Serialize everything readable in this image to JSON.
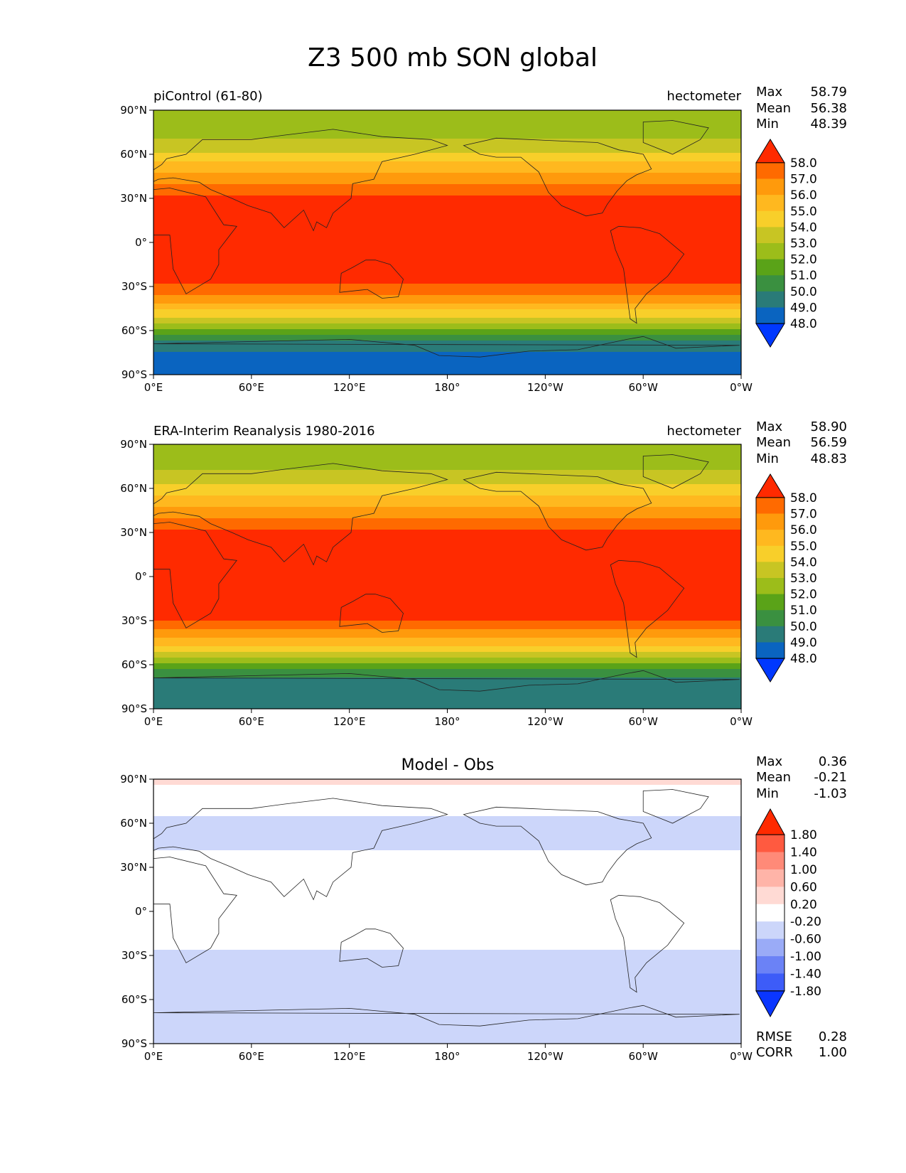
{
  "figure": {
    "title": "Z3 500 mb SON global"
  },
  "chart_data": [
    {
      "type": "heatmap",
      "panel": "model",
      "left_title": "piControl (61-80)",
      "center_title": "",
      "units": "hectometer",
      "x_ticks": [
        "0°E",
        "60°E",
        "120°E",
        "180°",
        "120°W",
        "60°W",
        "0°W"
      ],
      "y_ticks": [
        "90°N",
        "60°N",
        "30°N",
        "0°",
        "30°S",
        "60°S",
        "90°S"
      ],
      "stats": [
        {
          "label": "Max",
          "value": "58.79"
        },
        {
          "label": "Mean",
          "value": "56.38"
        },
        {
          "label": "Min",
          "value": "48.39"
        }
      ],
      "colorbar": {
        "levels": [
          "58.0",
          "57.0",
          "56.0",
          "55.0",
          "54.0",
          "53.0",
          "52.0",
          "51.0",
          "50.0",
          "49.0",
          "48.0"
        ],
        "colors": [
          "#ff2a00",
          "#ff6a00",
          "#ff9a0c",
          "#ffb81f",
          "#f8cf2a",
          "#c8c523",
          "#9cbd1a",
          "#5aa318",
          "#3a9040",
          "#2a7b78",
          "#0a64c0",
          "#0038ff"
        ]
      },
      "field": {
        "lat_profile": [
          {
            "lat": 90,
            "value": 52.1
          },
          {
            "lat": 80,
            "value": 52.3
          },
          {
            "lat": 72,
            "value": 52.9
          },
          {
            "lat": 65,
            "value": 53.6
          },
          {
            "lat": 58,
            "value": 54.5
          },
          {
            "lat": 50,
            "value": 55.6
          },
          {
            "lat": 42,
            "value": 56.7
          },
          {
            "lat": 34,
            "value": 57.7
          },
          {
            "lat": 28,
            "value": 58.3
          },
          {
            "lat": 0,
            "value": 58.6
          },
          {
            "lat": -26,
            "value": 58.3
          },
          {
            "lat": -32,
            "value": 57.6
          },
          {
            "lat": -38,
            "value": 56.6
          },
          {
            "lat": -44,
            "value": 55.4
          },
          {
            "lat": -50,
            "value": 54.1
          },
          {
            "lat": -55,
            "value": 52.8
          },
          {
            "lat": -60,
            "value": 51.5
          },
          {
            "lat": -65,
            "value": 50.3
          },
          {
            "lat": -70,
            "value": 49.4
          },
          {
            "lat": -76,
            "value": 48.8
          },
          {
            "lat": -90,
            "value": 48.6
          }
        ]
      }
    },
    {
      "type": "heatmap",
      "panel": "obs",
      "left_title": "ERA-Interim Reanalysis 1980-2016",
      "center_title": "",
      "units": "hectometer",
      "x_ticks": [
        "0°E",
        "60°E",
        "120°E",
        "180°",
        "120°W",
        "60°W",
        "0°W"
      ],
      "y_ticks": [
        "90°N",
        "60°N",
        "30°N",
        "0°",
        "30°S",
        "60°S",
        "90°S"
      ],
      "stats": [
        {
          "label": "Max",
          "value": "58.90"
        },
        {
          "label": "Mean",
          "value": "56.59"
        },
        {
          "label": "Min",
          "value": "48.83"
        }
      ],
      "colorbar": {
        "levels": [
          "58.0",
          "57.0",
          "56.0",
          "55.0",
          "54.0",
          "53.0",
          "52.0",
          "51.0",
          "50.0",
          "49.0",
          "48.0"
        ],
        "colors": [
          "#ff2a00",
          "#ff6a00",
          "#ff9a0c",
          "#ffb81f",
          "#f8cf2a",
          "#c8c523",
          "#9cbd1a",
          "#5aa318",
          "#3a9040",
          "#2a7b78",
          "#0a64c0",
          "#0038ff"
        ]
      },
      "field": {
        "lat_profile": [
          {
            "lat": 90,
            "value": 52.2
          },
          {
            "lat": 80,
            "value": 52.4
          },
          {
            "lat": 72,
            "value": 53.0
          },
          {
            "lat": 65,
            "value": 53.7
          },
          {
            "lat": 58,
            "value": 54.6
          },
          {
            "lat": 50,
            "value": 55.7
          },
          {
            "lat": 42,
            "value": 56.8
          },
          {
            "lat": 34,
            "value": 57.8
          },
          {
            "lat": 28,
            "value": 58.4
          },
          {
            "lat": 0,
            "value": 58.7
          },
          {
            "lat": -26,
            "value": 58.4
          },
          {
            "lat": -32,
            "value": 57.7
          },
          {
            "lat": -38,
            "value": 56.8
          },
          {
            "lat": -44,
            "value": 55.6
          },
          {
            "lat": -50,
            "value": 54.3
          },
          {
            "lat": -55,
            "value": 53.0
          },
          {
            "lat": -60,
            "value": 51.8
          },
          {
            "lat": -65,
            "value": 50.6
          },
          {
            "lat": -70,
            "value": 49.6
          },
          {
            "lat": -76,
            "value": 49.3
          },
          {
            "lat": -90,
            "value": 49.2
          }
        ]
      }
    },
    {
      "type": "heatmap",
      "panel": "diff",
      "left_title": "",
      "center_title": "Model - Obs",
      "units": "",
      "x_ticks": [
        "0°E",
        "60°E",
        "120°E",
        "180°",
        "120°W",
        "60°W",
        "0°W"
      ],
      "y_ticks": [
        "90°N",
        "60°N",
        "30°N",
        "0°",
        "30°S",
        "60°S",
        "90°S"
      ],
      "stats": [
        {
          "label": "Max",
          "value": "0.36"
        },
        {
          "label": "Mean",
          "value": "-0.21"
        },
        {
          "label": "Min",
          "value": "-1.03"
        }
      ],
      "bottom_stats": [
        {
          "label": "RMSE",
          "value": "0.28"
        },
        {
          "label": "CORR",
          "value": "1.00"
        }
      ],
      "colorbar": {
        "levels": [
          "1.80",
          "1.40",
          "1.00",
          "0.60",
          "0.20",
          "-0.20",
          "-0.60",
          "-1.00",
          "-1.40",
          "-1.80"
        ],
        "colors": [
          "#ff2a00",
          "#ff5a40",
          "#ff8a78",
          "#ffb4a8",
          "#ffdad4",
          "#ffffff",
          "#ccd6fa",
          "#9aabf7",
          "#6b82f6",
          "#3d5cf8",
          "#0a36ff"
        ]
      },
      "field": {
        "lat_profile": [
          {
            "lat": 90,
            "value": 0.3
          },
          {
            "lat": 81,
            "value": 0.0
          },
          {
            "lat": 70,
            "value": -0.1
          },
          {
            "lat": 60,
            "value": -0.3
          },
          {
            "lat": 45,
            "value": -0.3
          },
          {
            "lat": 38,
            "value": -0.1
          },
          {
            "lat": 0,
            "value": -0.05
          },
          {
            "lat": -22,
            "value": -0.1
          },
          {
            "lat": -30,
            "value": -0.3
          },
          {
            "lat": -50,
            "value": -0.35
          },
          {
            "lat": -62,
            "value": -0.3
          },
          {
            "lat": -70,
            "value": -0.5
          },
          {
            "lat": -90,
            "value": -0.5
          }
        ]
      }
    }
  ]
}
